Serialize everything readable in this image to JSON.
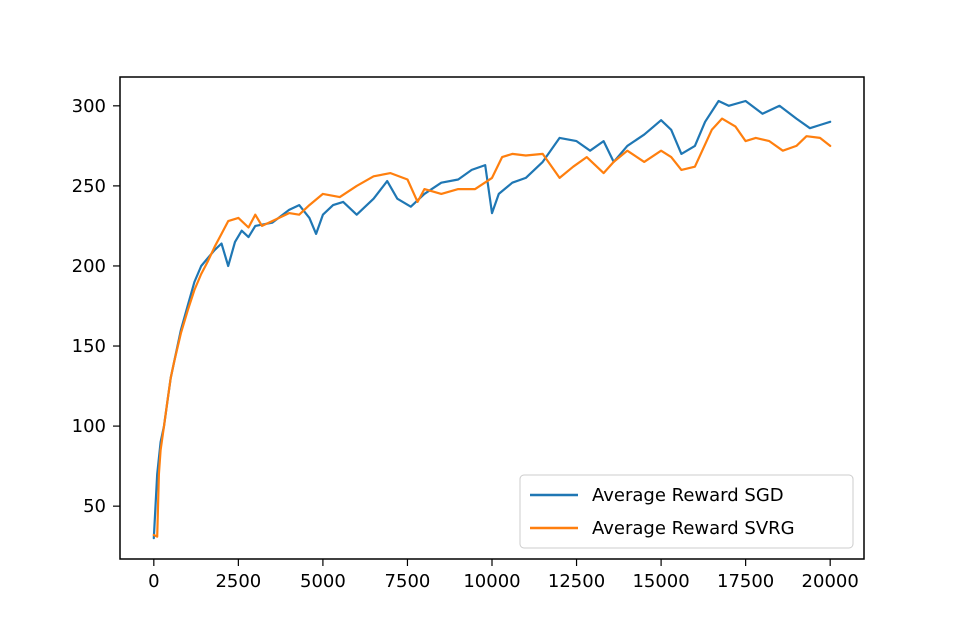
{
  "chart_data": {
    "type": "line",
    "title": "",
    "xlabel": "",
    "ylabel": "",
    "xlim": [
      -1000,
      21000
    ],
    "ylim": [
      17,
      318
    ],
    "xticks": [
      0,
      2500,
      5000,
      7500,
      10000,
      12500,
      15000,
      17500,
      20000
    ],
    "xtick_labels": [
      "0",
      "2500",
      "5000",
      "7500",
      "10000",
      "12500",
      "15000",
      "17500",
      "20000"
    ],
    "yticks": [
      50,
      100,
      150,
      200,
      250,
      300
    ],
    "ytick_labels": [
      "50",
      "100",
      "150",
      "200",
      "250",
      "300"
    ],
    "grid": false,
    "legend_position": "lower-right",
    "series": [
      {
        "name": "Average Reward SGD",
        "color": "#1f77b4",
        "x": [
          0,
          100,
          200,
          300,
          400,
          500,
          600,
          800,
          1000,
          1200,
          1400,
          1600,
          1800,
          2000,
          2200,
          2400,
          2600,
          2800,
          3000,
          3500,
          4000,
          4300,
          4600,
          4800,
          5000,
          5300,
          5600,
          6000,
          6500,
          6900,
          7200,
          7600,
          8000,
          8500,
          9000,
          9400,
          9800,
          10000,
          10200,
          10600,
          11000,
          11500,
          12000,
          12500,
          12900,
          13300,
          13600,
          14000,
          14500,
          15000,
          15300,
          15600,
          16000,
          16300,
          16700,
          17000,
          17500,
          18000,
          18500,
          19000,
          19400,
          19700,
          20000
        ],
        "values": [
          30,
          70,
          90,
          100,
          115,
          130,
          140,
          160,
          175,
          190,
          200,
          205,
          210,
          214,
          200,
          215,
          222,
          218,
          225,
          227,
          235,
          238,
          230,
          220,
          232,
          238,
          240,
          232,
          242,
          253,
          242,
          237,
          245,
          252,
          254,
          260,
          263,
          233,
          245,
          252,
          255,
          265,
          280,
          278,
          272,
          278,
          265,
          275,
          282,
          291,
          285,
          270,
          275,
          290,
          303,
          300,
          303,
          295,
          300,
          292,
          286,
          288,
          290
        ]
      },
      {
        "name": "Average Reward SVRG",
        "color": "#ff7f0e",
        "x": [
          0,
          100,
          150,
          200,
          300,
          400,
          500,
          600,
          800,
          1000,
          1200,
          1400,
          1600,
          1800,
          2000,
          2200,
          2500,
          2800,
          3000,
          3200,
          3500,
          4000,
          4300,
          4600,
          5000,
          5500,
          6000,
          6500,
          7000,
          7500,
          7800,
          8000,
          8500,
          9000,
          9500,
          10000,
          10300,
          10600,
          11000,
          11500,
          12000,
          12400,
          12800,
          13300,
          13600,
          14000,
          14500,
          15000,
          15300,
          15600,
          16000,
          16500,
          16800,
          17200,
          17500,
          17800,
          18200,
          18600,
          19000,
          19300,
          19700,
          20000
        ],
        "values": [
          32,
          31,
          70,
          85,
          100,
          115,
          130,
          140,
          158,
          172,
          185,
          195,
          203,
          212,
          220,
          228,
          230,
          224,
          232,
          225,
          228,
          233,
          232,
          238,
          245,
          243,
          250,
          256,
          258,
          254,
          240,
          248,
          245,
          248,
          248,
          255,
          268,
          270,
          269,
          270,
          255,
          262,
          268,
          258,
          265,
          272,
          265,
          272,
          268,
          260,
          262,
          285,
          292,
          287,
          278,
          280,
          278,
          272,
          275,
          281,
          280,
          275
        ]
      }
    ]
  }
}
